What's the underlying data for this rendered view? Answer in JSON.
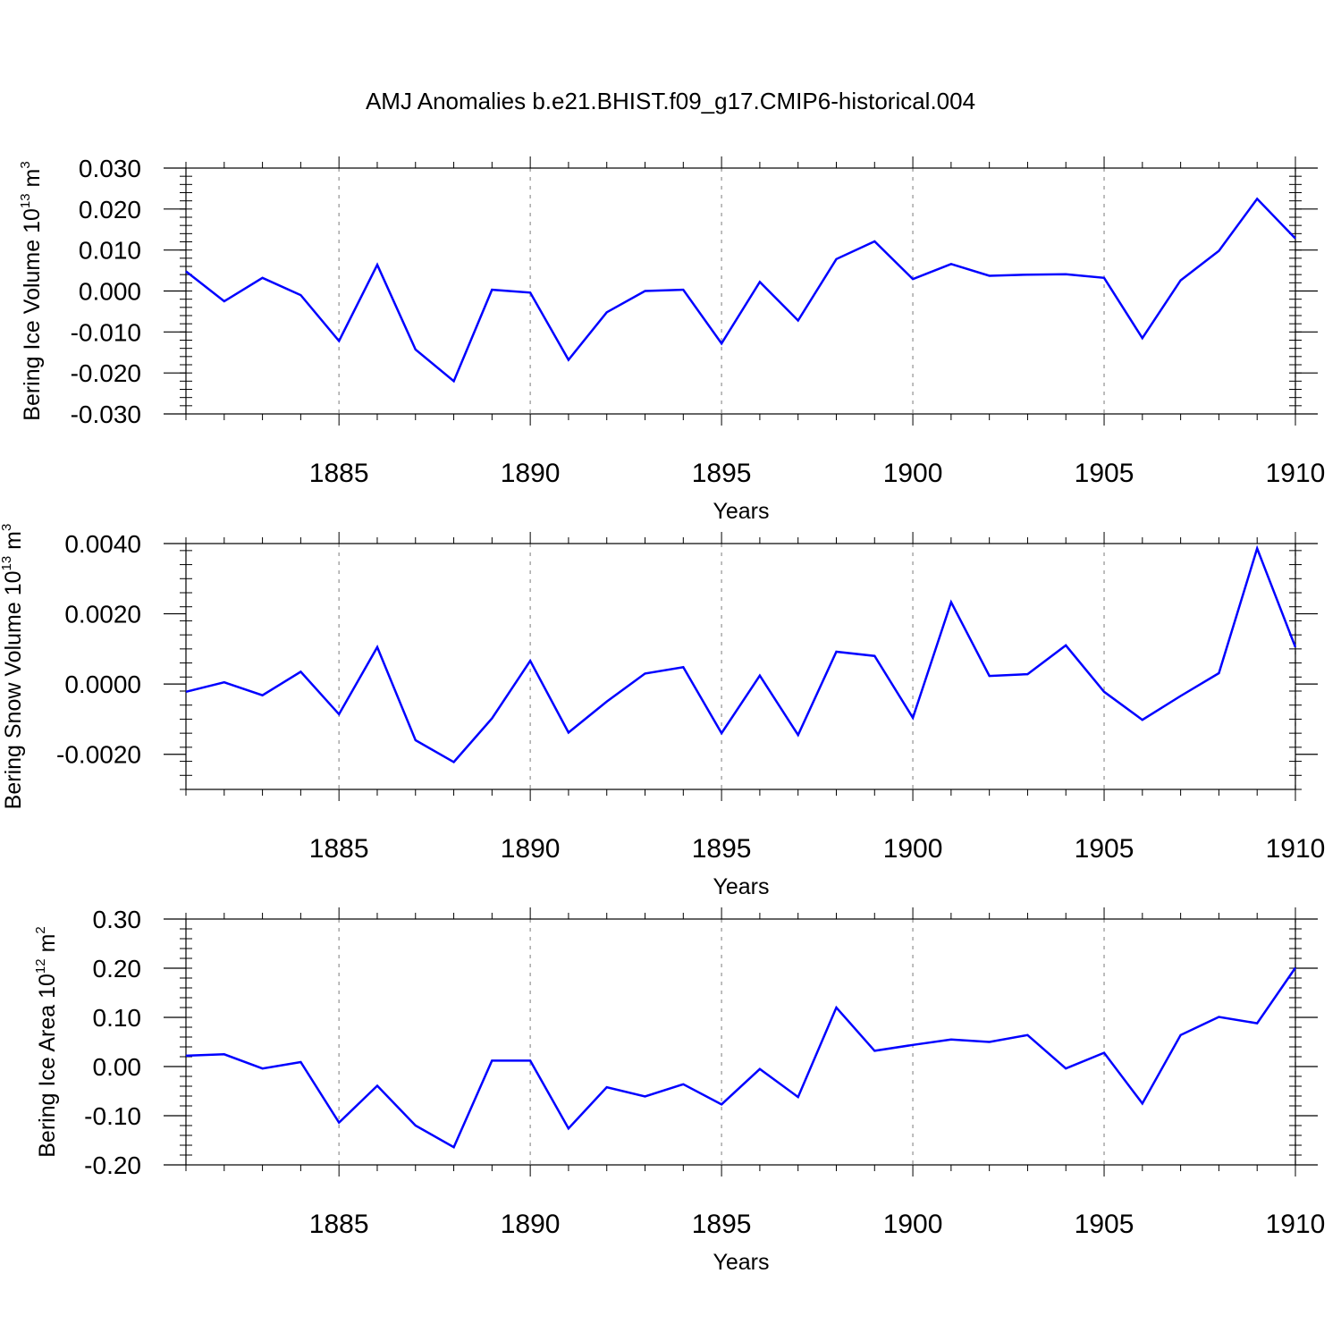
{
  "figure_title": "AMJ Anomalies b.e21.BHIST.f09_g17.CMIP6-historical.004",
  "colors": {
    "series": "#0000ff",
    "axes": "#000000",
    "grid": "#9a9a9a",
    "background": "#ffffff"
  },
  "chart_data": [
    {
      "type": "line",
      "title": "AMJ Anomalies b.e21.BHIST.f09_g17.CMIP6-historical.004",
      "xlabel": "Years",
      "ylabel": {
        "text": "Bering Ice Volume 10",
        "exp": "13",
        "unit": " m",
        "unit_exp": "3"
      },
      "xlim": [
        1881,
        1910
      ],
      "ylim": [
        -0.03,
        0.03
      ],
      "xticks": [
        1885,
        1890,
        1895,
        1900,
        1905,
        1910
      ],
      "xtick_labels": [
        "1885",
        "1890",
        "1895",
        "1900",
        "1905",
        "1910"
      ],
      "yticks": [
        -0.03,
        -0.02,
        -0.01,
        0.0,
        0.01,
        0.02,
        0.03
      ],
      "ytick_labels": [
        "-0.030",
        "-0.020",
        "-0.010",
        "0.000",
        "0.010",
        "0.020",
        "0.030"
      ],
      "grid": "vertical dashed at major x ticks",
      "x": [
        1881,
        1882,
        1883,
        1884,
        1885,
        1886,
        1887,
        1888,
        1889,
        1890,
        1891,
        1892,
        1893,
        1894,
        1895,
        1896,
        1897,
        1898,
        1899,
        1900,
        1901,
        1902,
        1903,
        1904,
        1905,
        1906,
        1907,
        1908,
        1909,
        1910
      ],
      "series": [
        {
          "name": "Bering Ice Volume",
          "color": "#0000ff",
          "values": [
            0.0048,
            -0.0025,
            0.0032,
            -0.001,
            -0.0122,
            0.0064,
            -0.0143,
            -0.022,
            0.0003,
            -0.0004,
            -0.0168,
            -0.0052,
            0.0,
            0.0003,
            -0.0128,
            0.0022,
            -0.0072,
            0.0078,
            0.0121,
            0.0029,
            0.0066,
            0.0037,
            0.004,
            0.0041,
            0.0032,
            -0.0115,
            0.0026,
            0.0098,
            0.0225,
            0.0128
          ]
        }
      ]
    },
    {
      "type": "line",
      "xlabel": "Years",
      "ylabel": {
        "text": "Bering Snow Volume 10",
        "exp": "13",
        "unit": " m",
        "unit_exp": "3"
      },
      "xlim": [
        1881,
        1910
      ],
      "ylim": [
        -0.003,
        0.004
      ],
      "xticks": [
        1885,
        1890,
        1895,
        1900,
        1905,
        1910
      ],
      "xtick_labels": [
        "1885",
        "1890",
        "1895",
        "1900",
        "1905",
        "1910"
      ],
      "yticks": [
        -0.002,
        0.0,
        0.002,
        0.004
      ],
      "ytick_labels": [
        "-0.0020",
        "0.0000",
        "0.0020",
        "0.0040"
      ],
      "grid": "vertical dashed at major x ticks",
      "x": [
        1881,
        1882,
        1883,
        1884,
        1885,
        1886,
        1887,
        1888,
        1889,
        1890,
        1891,
        1892,
        1893,
        1894,
        1895,
        1896,
        1897,
        1898,
        1899,
        1900,
        1901,
        1902,
        1903,
        1904,
        1905,
        1906,
        1907,
        1908,
        1909,
        1910
      ],
      "series": [
        {
          "name": "Bering Snow Volume",
          "color": "#0000ff",
          "values": [
            -0.00022,
            5e-05,
            -0.00032,
            0.00035,
            -0.00086,
            0.00105,
            -0.0016,
            -0.00222,
            -0.00098,
            0.00066,
            -0.00138,
            -0.0005,
            0.0003,
            0.00048,
            -0.0014,
            0.00024,
            -0.00145,
            0.00092,
            0.0008,
            -0.00096,
            0.00233,
            0.00023,
            0.00028,
            0.0011,
            -0.00022,
            -0.00102,
            -0.00034,
            0.00031,
            0.00386,
            0.00105
          ]
        }
      ]
    },
    {
      "type": "line",
      "xlabel": "Years",
      "ylabel": {
        "text": "Bering Ice Area 10",
        "exp": "12",
        "unit": " m",
        "unit_exp": "2"
      },
      "xlim": [
        1881,
        1910
      ],
      "ylim": [
        -0.2,
        0.3
      ],
      "xticks": [
        1885,
        1890,
        1895,
        1900,
        1905,
        1910
      ],
      "xtick_labels": [
        "1885",
        "1890",
        "1895",
        "1900",
        "1905",
        "1910"
      ],
      "yticks": [
        -0.2,
        -0.1,
        0.0,
        0.1,
        0.2,
        0.3
      ],
      "ytick_labels": [
        "-0.20",
        "-0.10",
        "0.00",
        "0.10",
        "0.20",
        "0.30"
      ],
      "grid": "vertical dashed at major x ticks",
      "x": [
        1881,
        1882,
        1883,
        1884,
        1885,
        1886,
        1887,
        1888,
        1889,
        1890,
        1891,
        1892,
        1893,
        1894,
        1895,
        1896,
        1897,
        1898,
        1899,
        1900,
        1901,
        1902,
        1903,
        1904,
        1905,
        1906,
        1907,
        1908,
        1909,
        1910
      ],
      "series": [
        {
          "name": "Bering Ice Area",
          "color": "#0000ff",
          "values": [
            0.022,
            0.025,
            -0.004,
            0.009,
            -0.114,
            -0.039,
            -0.12,
            -0.164,
            0.012,
            0.012,
            -0.126,
            -0.042,
            -0.061,
            -0.036,
            -0.077,
            -0.005,
            -0.062,
            0.12,
            0.032,
            0.044,
            0.055,
            0.05,
            0.064,
            -0.004,
            0.028,
            -0.075,
            0.064,
            0.101,
            0.088,
            0.201
          ]
        }
      ]
    }
  ]
}
